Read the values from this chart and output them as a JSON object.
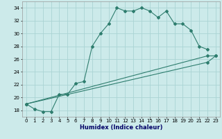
{
  "xlabel": "Humidex (Indice chaleur)",
  "ylabel": "",
  "bg_color": "#cceaea",
  "grid_color": "#aad4d4",
  "line_color": "#2e7d6e",
  "xlim": [
    -0.5,
    23.5
  ],
  "ylim": [
    17,
    35
  ],
  "xticks": [
    0,
    1,
    2,
    3,
    4,
    5,
    6,
    7,
    8,
    9,
    10,
    11,
    12,
    13,
    14,
    15,
    16,
    17,
    18,
    19,
    20,
    21,
    22,
    23
  ],
  "yticks": [
    18,
    20,
    22,
    24,
    26,
    28,
    30,
    32,
    34
  ],
  "series1": [
    [
      0,
      19
    ],
    [
      1,
      18.2
    ],
    [
      2,
      17.8
    ],
    [
      3,
      17.8
    ],
    [
      4,
      20.5
    ],
    [
      5,
      20.5
    ],
    [
      6,
      22.2
    ],
    [
      7,
      22.5
    ],
    [
      8,
      28
    ],
    [
      9,
      30
    ],
    [
      10,
      31.5
    ],
    [
      11,
      34
    ],
    [
      12,
      33.5
    ],
    [
      13,
      33.5
    ],
    [
      14,
      34
    ],
    [
      15,
      33.5
    ],
    [
      16,
      32.5
    ],
    [
      17,
      33.5
    ],
    [
      18,
      31.5
    ],
    [
      19,
      31.5
    ],
    [
      20,
      30.5
    ],
    [
      21,
      28
    ],
    [
      22,
      27.5
    ]
  ],
  "series2": [
    [
      0,
      19
    ],
    [
      22,
      26.5
    ],
    [
      23,
      26.5
    ]
  ],
  "series3": [
    [
      0,
      19
    ],
    [
      22,
      25.5
    ],
    [
      23,
      26.5
    ]
  ]
}
